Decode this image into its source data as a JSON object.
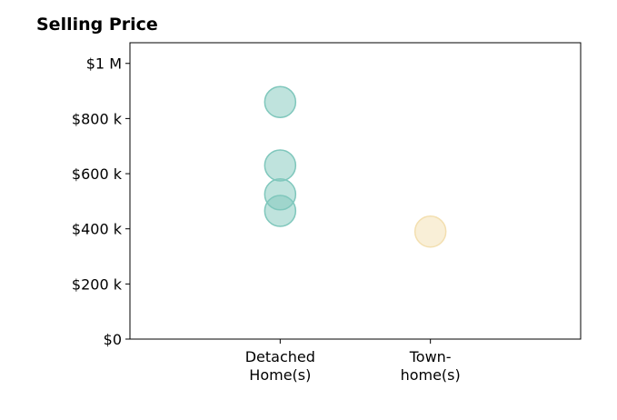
{
  "chart_data": {
    "type": "scatter",
    "title": "Selling Price",
    "xlabel": "",
    "ylabel": "",
    "categories": [
      [
        "Detached",
        "Home(s)"
      ],
      [
        "Town-",
        "home(s)"
      ]
    ],
    "y_ticks": [
      {
        "value": 0,
        "label": "$0"
      },
      {
        "value": 200000,
        "label": "$200 k"
      },
      {
        "value": 400000,
        "label": "$400 k"
      },
      {
        "value": 600000,
        "label": "$600 k"
      },
      {
        "value": 800000,
        "label": "$800 k"
      },
      {
        "value": 1000000,
        "label": "$1 M"
      }
    ],
    "ylim": [
      0,
      1075000
    ],
    "xlim": [
      -1,
      2
    ],
    "grid": false,
    "series": [
      {
        "category_index": 0,
        "color": "#7fc7bc",
        "values": [
          860000,
          630000,
          525000,
          465000
        ]
      },
      {
        "category_index": 1,
        "color": "#f3dfb0",
        "values": [
          390000
        ]
      }
    ]
  }
}
